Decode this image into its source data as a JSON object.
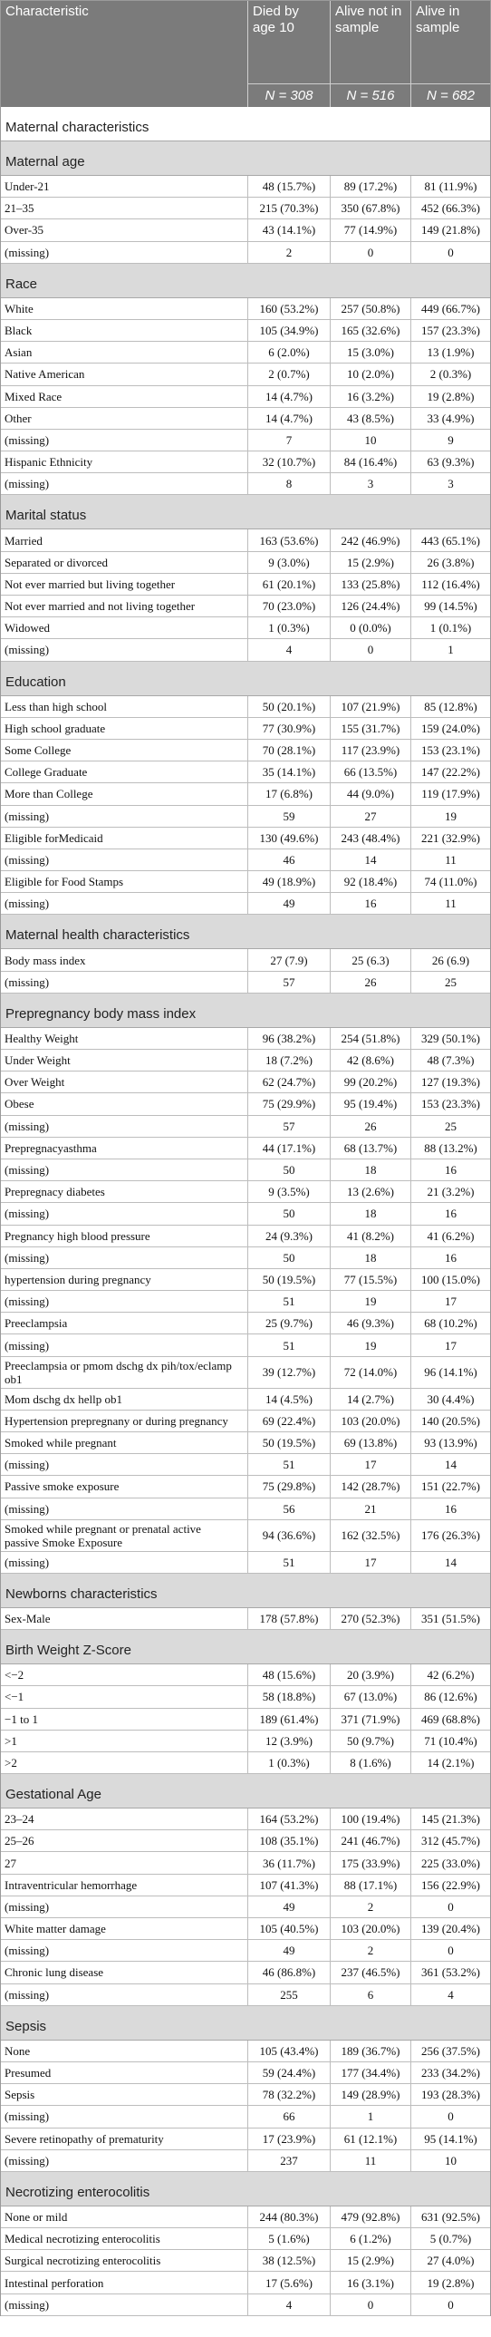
{
  "header": {
    "columns": [
      "Characteristic",
      "Died by age 10",
      "Alive not in sample",
      "Alive in sample"
    ],
    "n_row": [
      "N = 308",
      "N = 516",
      "N = 682"
    ]
  },
  "sections": [
    {
      "title": "Maternal characteristics",
      "rows": []
    },
    {
      "title": "Maternal age",
      "rows": [
        [
          "Under-21",
          "48 (15.7%)",
          "89 (17.2%)",
          "81 (11.9%)"
        ],
        [
          "21–35",
          "215 (70.3%)",
          "350 (67.8%)",
          "452 (66.3%)"
        ],
        [
          "Over-35",
          "43 (14.1%)",
          "77 (14.9%)",
          "149 (21.8%)"
        ],
        [
          "(missing)",
          "2",
          "0",
          "0"
        ]
      ]
    },
    {
      "title": "Race",
      "rows": [
        [
          "White",
          "160 (53.2%)",
          "257 (50.8%)",
          "449 (66.7%)"
        ],
        [
          "Black",
          "105 (34.9%)",
          "165 (32.6%)",
          "157 (23.3%)"
        ],
        [
          "Asian",
          "6 (2.0%)",
          "15 (3.0%)",
          "13 (1.9%)"
        ],
        [
          "Native American",
          "2 (0.7%)",
          "10 (2.0%)",
          "2 (0.3%)"
        ],
        [
          "Mixed Race",
          "14 (4.7%)",
          "16 (3.2%)",
          "19 (2.8%)"
        ],
        [
          "Other",
          "14 (4.7%)",
          "43 (8.5%)",
          "33 (4.9%)"
        ],
        [
          "(missing)",
          "7",
          "10",
          "9"
        ],
        [
          "Hispanic Ethnicity",
          "32 (10.7%)",
          "84 (16.4%)",
          "63 (9.3%)"
        ],
        [
          "(missing)",
          "8",
          "3",
          "3"
        ]
      ]
    },
    {
      "title": "Marital status",
      "rows": [
        [
          "Married",
          "163 (53.6%)",
          "242 (46.9%)",
          "443 (65.1%)"
        ],
        [
          "Separated or divorced",
          "9 (3.0%)",
          "15 (2.9%)",
          "26 (3.8%)"
        ],
        [
          "Not ever married but living together",
          "61 (20.1%)",
          "133 (25.8%)",
          "112 (16.4%)"
        ],
        [
          "Not ever married and not living together",
          "70 (23.0%)",
          "126 (24.4%)",
          "99 (14.5%)"
        ],
        [
          "Widowed",
          "1 (0.3%)",
          "0 (0.0%)",
          "1 (0.1%)"
        ],
        [
          "(missing)",
          "4",
          "0",
          "1"
        ]
      ]
    },
    {
      "title": "Education",
      "rows": [
        [
          "Less than high school",
          "50 (20.1%)",
          "107 (21.9%)",
          "85 (12.8%)"
        ],
        [
          "High school graduate",
          "77 (30.9%)",
          "155 (31.7%)",
          "159 (24.0%)"
        ],
        [
          "Some College",
          "70 (28.1%)",
          "117 (23.9%)",
          "153 (23.1%)"
        ],
        [
          "College Graduate",
          "35 (14.1%)",
          "66 (13.5%)",
          "147 (22.2%)"
        ],
        [
          "More than College",
          "17 (6.8%)",
          "44 (9.0%)",
          "119 (17.9%)"
        ],
        [
          "(missing)",
          "59",
          "27",
          "19"
        ],
        [
          "Eligible forMedicaid",
          "130 (49.6%)",
          "243 (48.4%)",
          "221 (32.9%)"
        ],
        [
          "(missing)",
          "46",
          "14",
          "11"
        ],
        [
          "Eligible for Food Stamps",
          "49 (18.9%)",
          "92 (18.4%)",
          "74 (11.0%)"
        ],
        [
          "(missing)",
          "49",
          "16",
          "11"
        ]
      ]
    },
    {
      "title": "Maternal health characteristics",
      "rows": [
        [
          "Body mass index",
          "27 (7.9)",
          "25 (6.3)",
          "26 (6.9)"
        ],
        [
          "(missing)",
          "57",
          "26",
          "25"
        ]
      ]
    },
    {
      "title": "Prepregnancy body mass index",
      "rows": [
        [
          "Healthy Weight",
          "96 (38.2%)",
          "254 (51.8%)",
          "329 (50.1%)"
        ],
        [
          "Under Weight",
          "18 (7.2%)",
          "42 (8.6%)",
          "48 (7.3%)"
        ],
        [
          "Over Weight",
          "62 (24.7%)",
          "99 (20.2%)",
          "127 (19.3%)"
        ],
        [
          "Obese",
          "75 (29.9%)",
          "95 (19.4%)",
          "153 (23.3%)"
        ],
        [
          "(missing)",
          "57",
          "26",
          "25"
        ],
        [
          "Prepregnacyasthma",
          "44 (17.1%)",
          "68 (13.7%)",
          "88 (13.2%)"
        ],
        [
          "(missing)",
          "50",
          "18",
          "16"
        ],
        [
          "Prepregnacy diabetes",
          "9 (3.5%)",
          "13 (2.6%)",
          "21 (3.2%)"
        ],
        [
          "(missing)",
          "50",
          "18",
          "16"
        ],
        [
          "Pregnancy high blood pressure",
          "24 (9.3%)",
          "41 (8.2%)",
          "41 (6.2%)"
        ],
        [
          "(missing)",
          "50",
          "18",
          "16"
        ],
        [
          "hypertension during pregnancy",
          "50 (19.5%)",
          "77 (15.5%)",
          "100 (15.0%)"
        ],
        [
          "(missing)",
          "51",
          "19",
          "17"
        ],
        [
          "Preeclampsia",
          "25 (9.7%)",
          "46 (9.3%)",
          "68 (10.2%)"
        ],
        [
          "(missing)",
          "51",
          "19",
          "17"
        ],
        [
          "Preeclampsia or pmom dschg dx pih/tox/eclamp ob1",
          "39 (12.7%)",
          "72 (14.0%)",
          "96 (14.1%)"
        ],
        [
          "Mom dschg dx hellp ob1",
          "14 (4.5%)",
          "14 (2.7%)",
          "30 (4.4%)"
        ],
        [
          "Hypertension prepregnany or during pregnancy",
          "69 (22.4%)",
          "103 (20.0%)",
          "140 (20.5%)"
        ],
        [
          "Smoked while pregnant",
          "50 (19.5%)",
          "69 (13.8%)",
          "93 (13.9%)"
        ],
        [
          "(missing)",
          "51",
          "17",
          "14"
        ],
        [
          "Passive smoke exposure",
          "75 (29.8%)",
          "142 (28.7%)",
          "151 (22.7%)"
        ],
        [
          "(missing)",
          "56",
          "21",
          "16"
        ],
        [
          "Smoked while pregnant or prenatal active passive Smoke Exposure",
          "94 (36.6%)",
          "162 (32.5%)",
          "176 (26.3%)"
        ],
        [
          "(missing)",
          "51",
          "17",
          "14"
        ]
      ]
    },
    {
      "title": "Newborns characteristics",
      "rows": [
        [
          "Sex-Male",
          "178 (57.8%)",
          "270 (52.3%)",
          "351 (51.5%)"
        ]
      ]
    },
    {
      "title": "Birth Weight Z-Score",
      "rows": [
        [
          "<−2",
          "48 (15.6%)",
          "20 (3.9%)",
          "42 (6.2%)"
        ],
        [
          "<−1",
          "58 (18.8%)",
          "67 (13.0%)",
          "86 (12.6%)"
        ],
        [
          "−1 to 1",
          "189 (61.4%)",
          "371 (71.9%)",
          "469 (68.8%)"
        ],
        [
          ">1",
          "12 (3.9%)",
          "50 (9.7%)",
          "71 (10.4%)"
        ],
        [
          ">2",
          "1 (0.3%)",
          "8 (1.6%)",
          "14 (2.1%)"
        ]
      ]
    },
    {
      "title": "Gestational Age",
      "rows": [
        [
          "23–24",
          "164 (53.2%)",
          "100 (19.4%)",
          "145 (21.3%)"
        ],
        [
          "25–26",
          "108 (35.1%)",
          "241 (46.7%)",
          "312 (45.7%)"
        ],
        [
          "27",
          "36 (11.7%)",
          "175 (33.9%)",
          "225 (33.0%)"
        ],
        [
          "Intraventricular hemorrhage",
          "107 (41.3%)",
          "88 (17.1%)",
          "156 (22.9%)"
        ],
        [
          "(missing)",
          "49",
          "2",
          "0"
        ],
        [
          "White matter damage",
          "105 (40.5%)",
          "103 (20.0%)",
          "139 (20.4%)"
        ],
        [
          "(missing)",
          "49",
          "2",
          "0"
        ],
        [
          "Chronic lung disease",
          "46 (86.8%)",
          "237 (46.5%)",
          "361 (53.2%)"
        ],
        [
          "(missing)",
          "255",
          "6",
          "4"
        ]
      ]
    },
    {
      "title": "Sepsis",
      "rows": [
        [
          "None",
          "105 (43.4%)",
          "189 (36.7%)",
          "256 (37.5%)"
        ],
        [
          "Presumed",
          "59 (24.4%)",
          "177 (34.4%)",
          "233 (34.2%)"
        ],
        [
          "Sepsis",
          "78 (32.2%)",
          "149 (28.9%)",
          "193 (28.3%)"
        ],
        [
          "(missing)",
          "66",
          "1",
          "0"
        ],
        [
          "Severe retinopathy of prematurity",
          "17 (23.9%)",
          "61 (12.1%)",
          "95 (14.1%)"
        ],
        [
          "(missing)",
          "237",
          "11",
          "10"
        ]
      ]
    },
    {
      "title": "Necrotizing enterocolitis",
      "rows": [
        [
          "None or mild",
          "244 (80.3%)",
          "479 (92.8%)",
          "631 (92.5%)"
        ],
        [
          "Medical necrotizing enterocolitis",
          "5 (1.6%)",
          "6 (1.2%)",
          "5 (0.7%)"
        ],
        [
          "Surgical necrotizing enterocolitis",
          "38 (12.5%)",
          "15 (2.9%)",
          "27 (4.0%)"
        ],
        [
          "Intestinal perforation",
          "17 (5.6%)",
          "16 (3.1%)",
          "19 (2.8%)"
        ],
        [
          "(missing)",
          "4",
          "0",
          "0"
        ]
      ]
    }
  ]
}
